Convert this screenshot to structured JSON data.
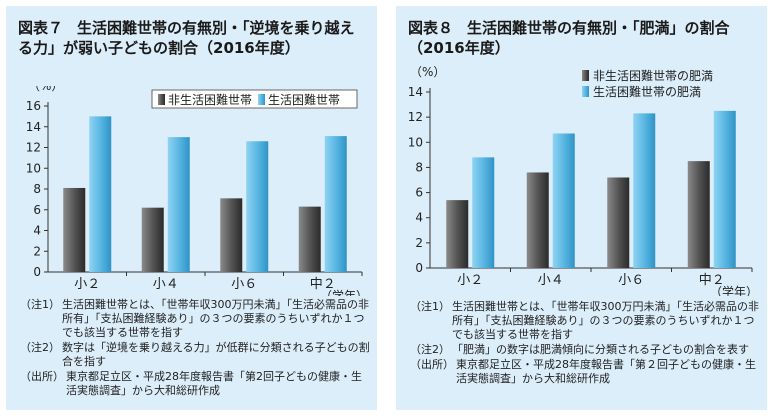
{
  "charts": [
    {
      "figure_label": "図表７",
      "figure_title": "生活困難世帯の有無別・「逆境を乗り越える力」が弱い子どもの割合（2016年度）",
      "notes": [
        {
          "label": "（注1）",
          "text": "生活困難世帯とは、「世帯年収300万円未満」「生活必需品の非所有」「支払困難経験あり」の３つの要素のうちいずれか１つでも該当する世帯を指す"
        },
        {
          "label": "（注2）",
          "text": "数字は「逆境を乗り越える力」が低群に分類される子どもの割合を指す"
        },
        {
          "label": "（出所）",
          "text": "東京都足立区・平成28年度報告書「第2回子どもの健康・生活実態調査」から大和総研作成"
        }
      ]
    },
    {
      "figure_label": "図表８",
      "figure_title": "生活困難世帯の有無別・「肥満」の割合（2016年度）",
      "notes": [
        {
          "label": "（注1）",
          "text": "生活困難世帯とは、「世帯年収300万円未満」「生活必需品の非所有」「支払困難経験あり」の３つの要素のうちいずれか１つでも該当する世帯を指す"
        },
        {
          "label": "（注2）",
          "text": "「肥満」の数字は肥満傾向に分類される子どもの割合を表す"
        },
        {
          "label": "（出所）",
          "text": "東京都足立区・平成28年度報告書「第２回子どもの健康・生活実態調査」から大和総研作成"
        }
      ]
    }
  ],
  "chart_data": [
    {
      "type": "bar",
      "title": "生活困難世帯の有無別・「逆境を乗り越える力」が弱い子どもの割合（2016年度）",
      "categories": [
        "小２",
        "小４",
        "小６",
        "中２"
      ],
      "series": [
        {
          "name": "非生活困難世帯",
          "values": [
            8.1,
            6.2,
            7.1,
            6.3
          ]
        },
        {
          "name": "生活困難世帯",
          "values": [
            15.0,
            13.0,
            12.6,
            13.1
          ]
        }
      ],
      "xlabel": "（学年）",
      "ylabel": "（%）",
      "ylim": [
        0,
        16
      ],
      "yticks": [
        0,
        2,
        4,
        6,
        8,
        10,
        12,
        14,
        16
      ],
      "grid": false,
      "legend_position": "top-right",
      "colors": {
        "series0": "#555555",
        "series1": "#5ab7e3"
      }
    },
    {
      "type": "bar",
      "title": "生活困難世帯の有無別・「肥満」の割合（2016年度）",
      "categories": [
        "小２",
        "小４",
        "小６",
        "中２"
      ],
      "series": [
        {
          "name": "非生活困難世帯の肥満",
          "values": [
            5.4,
            7.6,
            7.2,
            8.5
          ]
        },
        {
          "name": "生活困難世帯の肥満",
          "values": [
            8.8,
            10.7,
            12.3,
            12.5
          ]
        }
      ],
      "xlabel": "（学年）",
      "ylabel": "（%）",
      "ylim": [
        0,
        14
      ],
      "yticks": [
        0,
        2,
        4,
        6,
        8,
        10,
        12,
        14
      ],
      "grid": false,
      "legend_position": "top-left",
      "colors": {
        "series0": "#555555",
        "series1": "#5ab7e3"
      }
    }
  ]
}
